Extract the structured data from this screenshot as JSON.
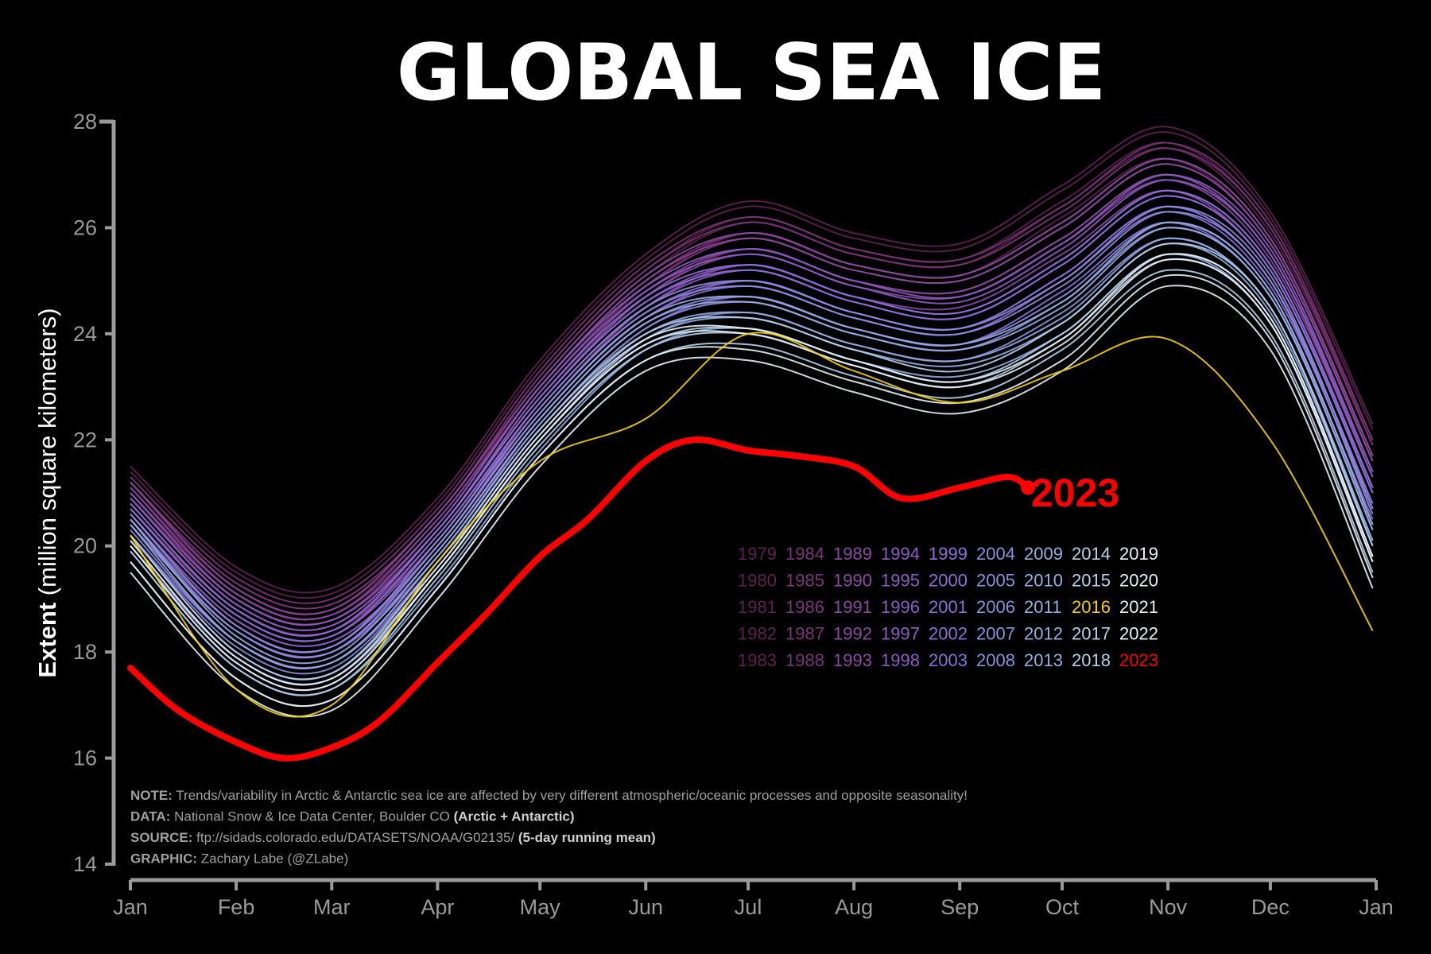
{
  "chart_data": {
    "type": "line",
    "title": "GLOBAL SEA ICE",
    "ylabel_bold": "Extent",
    "ylabel_rest": "(million square kilometers)",
    "xlabel": "",
    "ylim": [
      14,
      28
    ],
    "yticks": [
      14,
      16,
      18,
      20,
      22,
      24,
      26,
      28
    ],
    "xticks": [
      {
        "label": "Jan",
        "day": 1
      },
      {
        "label": "Feb",
        "day": 32
      },
      {
        "label": "Mar",
        "day": 60
      },
      {
        "label": "Apr",
        "day": 91
      },
      {
        "label": "May",
        "day": 121
      },
      {
        "label": "Jun",
        "day": 152
      },
      {
        "label": "Jul",
        "day": 182
      },
      {
        "label": "Aug",
        "day": 213
      },
      {
        "label": "Sep",
        "day": 244
      },
      {
        "label": "Oct",
        "day": 274
      },
      {
        "label": "Nov",
        "day": 305
      },
      {
        "label": "Dec",
        "day": 335
      },
      {
        "label": "Jan",
        "day": 366
      }
    ],
    "grid": false,
    "x_days": [
      1,
      32,
      60,
      91,
      121,
      152,
      182,
      213,
      244,
      274,
      305,
      335,
      365
    ],
    "series": [
      {
        "name": "1979",
        "color": "#5c2150",
        "values": [
          21.4,
          19.5,
          19.1,
          20.8,
          23.4,
          25.4,
          26.4,
          25.8,
          25.6,
          26.7,
          27.8,
          26.2,
          22.2
        ]
      },
      {
        "name": "1980",
        "color": "#5c2150",
        "values": [
          21.1,
          19.2,
          18.8,
          20.5,
          23.1,
          25.1,
          26.1,
          25.5,
          25.3,
          26.4,
          27.5,
          25.9,
          21.9
        ]
      },
      {
        "name": "1981",
        "color": "#5c2150",
        "values": [
          21.5,
          19.6,
          19.2,
          20.9,
          23.5,
          25.5,
          26.5,
          25.9,
          25.7,
          26.8,
          27.9,
          26.3,
          22.3
        ]
      },
      {
        "name": "1982",
        "color": "#5c2150",
        "values": [
          20.9,
          19.0,
          18.6,
          20.3,
          22.9,
          24.9,
          25.9,
          25.3,
          25.1,
          26.2,
          27.3,
          25.7,
          21.7
        ]
      },
      {
        "name": "1983",
        "color": "#5c2150",
        "values": [
          21.2,
          19.3,
          18.9,
          20.6,
          23.2,
          25.2,
          26.2,
          25.6,
          25.4,
          26.5,
          27.6,
          26.0,
          22.0
        ]
      },
      {
        "name": "1984",
        "color": "#7b3478",
        "values": [
          21.2,
          19.3,
          18.9,
          20.6,
          23.2,
          25.2,
          26.1,
          25.5,
          25.3,
          26.3,
          27.5,
          26.0,
          21.9
        ]
      },
      {
        "name": "1985",
        "color": "#7b3478",
        "values": [
          20.9,
          19.0,
          18.6,
          20.3,
          22.9,
          24.9,
          25.8,
          25.2,
          25.0,
          26.0,
          27.2,
          25.7,
          21.6
        ]
      },
      {
        "name": "1986",
        "color": "#7b3478",
        "values": [
          21.3,
          19.4,
          19.0,
          20.7,
          23.3,
          25.3,
          26.2,
          25.6,
          25.4,
          26.4,
          27.6,
          26.1,
          22.0
        ]
      },
      {
        "name": "1987",
        "color": "#7b3478",
        "values": [
          20.7,
          18.8,
          18.4,
          20.1,
          22.7,
          24.7,
          25.6,
          25.0,
          24.8,
          25.8,
          27.0,
          25.5,
          21.4
        ]
      },
      {
        "name": "1988",
        "color": "#7b3478",
        "values": [
          21.0,
          19.1,
          18.7,
          20.4,
          23.0,
          25.0,
          25.9,
          25.3,
          25.1,
          26.1,
          27.3,
          25.8,
          21.7
        ]
      },
      {
        "name": "1989",
        "color": "#8a4aa0",
        "values": [
          21.1,
          19.1,
          18.7,
          20.5,
          23.0,
          25.0,
          25.8,
          25.2,
          25.0,
          26.0,
          27.2,
          25.7,
          21.6
        ]
      },
      {
        "name": "1990",
        "color": "#8a4aa0",
        "values": [
          20.8,
          18.8,
          18.4,
          20.2,
          22.7,
          24.7,
          25.5,
          24.9,
          24.7,
          25.7,
          26.9,
          25.4,
          21.3
        ]
      },
      {
        "name": "1991",
        "color": "#8a4aa0",
        "values": [
          21.2,
          19.2,
          18.8,
          20.6,
          23.1,
          25.1,
          25.9,
          25.3,
          25.1,
          26.1,
          27.3,
          25.8,
          21.7
        ]
      },
      {
        "name": "1992",
        "color": "#8a4aa0",
        "values": [
          20.6,
          18.6,
          18.2,
          20.0,
          22.5,
          24.5,
          25.3,
          24.7,
          24.5,
          25.5,
          26.7,
          25.2,
          21.1
        ]
      },
      {
        "name": "1993",
        "color": "#8a4aa0",
        "values": [
          20.9,
          18.9,
          18.5,
          20.3,
          22.8,
          24.8,
          25.6,
          25.0,
          24.8,
          25.8,
          27.0,
          25.5,
          21.4
        ]
      },
      {
        "name": "1994",
        "color": "#8c5cc4",
        "values": [
          20.9,
          18.9,
          18.5,
          20.3,
          22.9,
          24.8,
          25.5,
          24.9,
          24.6,
          25.6,
          26.9,
          25.5,
          21.3
        ]
      },
      {
        "name": "1995",
        "color": "#8c5cc4",
        "values": [
          20.6,
          18.6,
          18.2,
          20.0,
          22.6,
          24.5,
          25.2,
          24.6,
          24.3,
          25.3,
          26.6,
          25.2,
          21.0
        ]
      },
      {
        "name": "1996",
        "color": "#8c5cc4",
        "values": [
          21.0,
          19.0,
          18.6,
          20.4,
          23.0,
          24.9,
          25.6,
          25.0,
          24.7,
          25.7,
          27.0,
          25.6,
          21.4
        ]
      },
      {
        "name": "1997",
        "color": "#8c5cc4",
        "values": [
          20.4,
          18.4,
          18.0,
          19.8,
          22.4,
          24.3,
          25.0,
          24.4,
          24.1,
          25.1,
          26.4,
          25.0,
          20.8
        ]
      },
      {
        "name": "1998",
        "color": "#8c5cc4",
        "values": [
          20.7,
          18.7,
          18.3,
          20.1,
          22.7,
          24.6,
          25.3,
          24.7,
          24.4,
          25.4,
          26.7,
          25.3,
          21.1
        ]
      },
      {
        "name": "1999",
        "color": "#8c70d8",
        "values": [
          20.7,
          18.7,
          18.3,
          20.2,
          22.7,
          24.6,
          25.2,
          24.6,
          24.3,
          25.3,
          26.6,
          25.2,
          21.0
        ]
      },
      {
        "name": "2000",
        "color": "#8c70d8",
        "values": [
          20.4,
          18.4,
          18.0,
          19.9,
          22.4,
          24.3,
          24.9,
          24.3,
          24.0,
          25.0,
          26.3,
          24.9,
          20.7
        ]
      },
      {
        "name": "2001",
        "color": "#8c70d8",
        "values": [
          20.8,
          18.8,
          18.4,
          20.3,
          22.8,
          24.7,
          25.3,
          24.7,
          24.4,
          25.4,
          26.7,
          25.3,
          21.1
        ]
      },
      {
        "name": "2002",
        "color": "#8c70d8",
        "values": [
          20.2,
          18.2,
          17.8,
          19.7,
          22.2,
          24.1,
          24.7,
          24.1,
          23.8,
          24.8,
          26.1,
          24.7,
          20.5
        ]
      },
      {
        "name": "2003",
        "color": "#8c70d8",
        "values": [
          20.5,
          18.5,
          18.1,
          20.0,
          22.5,
          24.4,
          25.0,
          24.4,
          24.1,
          25.1,
          26.4,
          25.0,
          20.8
        ]
      },
      {
        "name": "2004",
        "color": "#8f8fdc",
        "values": [
          20.5,
          18.4,
          18.0,
          20.0,
          22.5,
          24.4,
          24.9,
          24.3,
          24.0,
          24.9,
          26.3,
          25.0,
          20.6
        ]
      },
      {
        "name": "2005",
        "color": "#8f8fdc",
        "values": [
          20.2,
          18.1,
          17.7,
          19.7,
          22.2,
          24.1,
          24.6,
          24.0,
          23.7,
          24.6,
          26.0,
          24.7,
          20.3
        ]
      },
      {
        "name": "2006",
        "color": "#8f8fdc",
        "values": [
          20.6,
          18.5,
          18.1,
          20.1,
          22.6,
          24.5,
          25.0,
          24.4,
          24.1,
          25.0,
          26.4,
          25.1,
          20.7
        ]
      },
      {
        "name": "2007",
        "color": "#8f8fdc",
        "values": [
          20.0,
          17.9,
          17.5,
          19.5,
          22.0,
          23.9,
          24.4,
          23.8,
          23.5,
          24.4,
          25.8,
          24.5,
          20.1
        ]
      },
      {
        "name": "2008",
        "color": "#8f8fdc",
        "values": [
          20.3,
          18.2,
          17.8,
          19.8,
          22.3,
          24.2,
          24.7,
          24.1,
          23.8,
          24.7,
          26.1,
          24.8,
          20.4
        ]
      },
      {
        "name": "2009",
        "color": "#94aee0",
        "values": [
          20.4,
          18.2,
          17.8,
          19.8,
          22.3,
          24.2,
          24.6,
          24.0,
          23.7,
          24.5,
          26.0,
          24.7,
          20.3
        ]
      },
      {
        "name": "2010",
        "color": "#94aee0",
        "values": [
          20.1,
          17.9,
          17.5,
          19.5,
          22.0,
          23.9,
          24.3,
          23.7,
          23.4,
          24.2,
          25.7,
          24.4,
          20.0
        ]
      },
      {
        "name": "2011",
        "color": "#94aee0",
        "values": [
          20.5,
          18.3,
          17.9,
          19.9,
          22.4,
          24.3,
          24.7,
          24.1,
          23.8,
          24.6,
          26.1,
          24.8,
          20.4
        ]
      },
      {
        "name": "2012",
        "color": "#94aee0",
        "values": [
          19.9,
          17.7,
          17.3,
          19.3,
          21.8,
          23.7,
          24.1,
          23.5,
          23.2,
          24.0,
          25.5,
          24.2,
          19.8
        ]
      },
      {
        "name": "2013",
        "color": "#94aee0",
        "values": [
          20.2,
          18.0,
          17.6,
          19.6,
          22.1,
          24.0,
          24.4,
          23.8,
          23.5,
          24.3,
          25.8,
          24.5,
          20.1
        ]
      },
      {
        "name": "2014",
        "color": "#b4d2ea",
        "values": [
          20.2,
          18.0,
          17.6,
          19.7,
          22.2,
          24.0,
          24.3,
          23.7,
          23.3,
          24.2,
          25.7,
          24.5,
          20.0
        ]
      },
      {
        "name": "2015",
        "color": "#b4d2ea",
        "values": [
          19.9,
          17.7,
          17.3,
          19.4,
          21.9,
          23.7,
          24.0,
          23.4,
          23.0,
          23.9,
          25.4,
          24.2,
          19.7
        ]
      },
      {
        "name": "2016",
        "color": "#f5d000",
        "values": [
          20.2,
          17.3,
          17.0,
          19.7,
          21.6,
          22.4,
          24.0,
          23.3,
          22.7,
          23.3,
          23.9,
          22.0,
          18.4
        ]
      },
      {
        "name": "2017",
        "color": "#b4d2ea",
        "values": [
          19.7,
          17.5,
          17.1,
          19.2,
          21.7,
          23.5,
          23.8,
          23.2,
          22.8,
          23.7,
          25.2,
          24.0,
          19.5
        ]
      },
      {
        "name": "2018",
        "color": "#b4d2ea",
        "values": [
          20.0,
          17.8,
          17.4,
          19.5,
          22.0,
          23.8,
          24.1,
          23.5,
          23.1,
          24.0,
          25.5,
          24.3,
          19.8
        ]
      },
      {
        "name": "2019",
        "color": "#e8f0f4",
        "values": [
          20.0,
          17.8,
          17.4,
          19.5,
          22.0,
          23.8,
          24.0,
          23.4,
          23.0,
          23.8,
          25.4,
          24.2,
          19.7
        ]
      },
      {
        "name": "2020",
        "color": "#e8f0f4",
        "values": [
          19.7,
          17.5,
          17.1,
          19.2,
          21.7,
          23.5,
          23.7,
          23.1,
          22.7,
          23.5,
          25.1,
          23.9,
          19.4
        ]
      },
      {
        "name": "2021",
        "color": "#e8f0f4",
        "values": [
          20.1,
          17.9,
          17.5,
          19.6,
          22.1,
          23.9,
          24.1,
          23.5,
          23.1,
          23.9,
          25.5,
          24.3,
          19.8
        ]
      },
      {
        "name": "2022",
        "color": "#e8f0f4",
        "values": [
          19.5,
          17.3,
          16.9,
          19.0,
          21.5,
          23.3,
          23.5,
          22.9,
          22.5,
          23.3,
          24.9,
          23.7,
          19.2
        ]
      }
    ],
    "current": {
      "name": "2023",
      "color": "#ff0000",
      "x_days": [
        1,
        15,
        32,
        46,
        60,
        74,
        91,
        105,
        121,
        135,
        152,
        166,
        182,
        196,
        213,
        227,
        244,
        258,
        264
      ],
      "values": [
        17.7,
        16.9,
        16.3,
        16.0,
        16.2,
        16.7,
        17.8,
        18.7,
        19.8,
        20.5,
        21.6,
        22.0,
        21.8,
        21.7,
        21.5,
        20.9,
        21.1,
        21.3,
        21.1
      ]
    },
    "legend": {
      "placement": "center-right",
      "columns": [
        [
          "1979",
          "1980",
          "1981",
          "1982",
          "1983"
        ],
        [
          "1984",
          "1985",
          "1986",
          "1987",
          "1988"
        ],
        [
          "1989",
          "1990",
          "1991",
          "1992",
          "1993"
        ],
        [
          "1994",
          "1995",
          "1996",
          "1997",
          "1998"
        ],
        [
          "1999",
          "2000",
          "2001",
          "2002",
          "2003"
        ],
        [
          "2004",
          "2005",
          "2006",
          "2007",
          "2008"
        ],
        [
          "2009",
          "2010",
          "2011",
          "2012",
          "2013"
        ],
        [
          "2014",
          "2015",
          "2016",
          "2017",
          "2018"
        ],
        [
          "2019",
          "2020",
          "2021",
          "2022",
          "2023"
        ]
      ]
    },
    "notes": [
      {
        "label": "NOTE:",
        "text": " Trends/variability in Arctic & Antarctic sea ice are affected by very different atmospheric/oceanic processes and opposite seasonality!",
        "extra": ""
      },
      {
        "label": "DATA:",
        "text": " National Snow & Ice Data Center, Boulder CO ",
        "extra": "(Arctic + Antarctic)"
      },
      {
        "label": "SOURCE:",
        "text": " ftp://sidads.colorado.edu/DATASETS/NOAA/G02135/ ",
        "extra": "(5-day running mean)"
      },
      {
        "label": "GRAPHIC:",
        "text": " Zachary Labe (@ZLabe)",
        "extra": ""
      }
    ]
  }
}
